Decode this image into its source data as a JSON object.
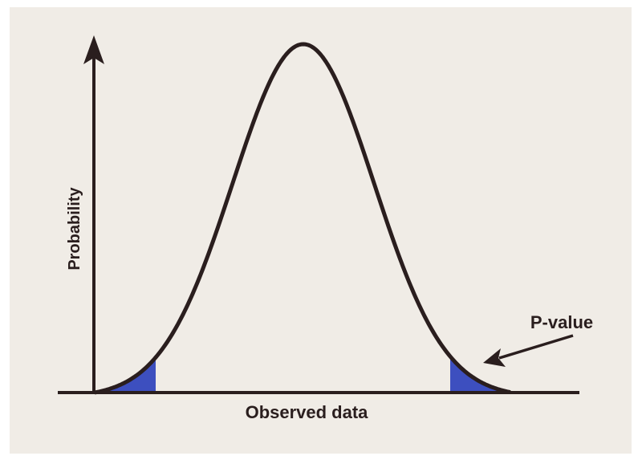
{
  "diagram": {
    "y_axis_label": "Probability",
    "x_axis_label": "Observed data",
    "annotation_label": "P-value",
    "colors": {
      "background": "#f0ece6",
      "curve": "#2a1e1e",
      "shaded_tail": "#3d4fbf"
    }
  }
}
